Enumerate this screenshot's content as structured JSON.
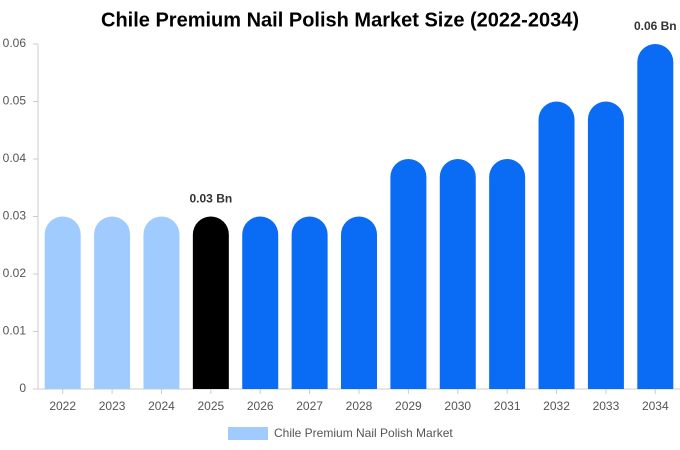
{
  "chart_data": {
    "type": "bar",
    "title": "Chile Premium Nail Polish Market Size (2022-2034)",
    "categories": [
      "2022",
      "2023",
      "2024",
      "2025",
      "2026",
      "2027",
      "2028",
      "2029",
      "2030",
      "2031",
      "2032",
      "2033",
      "2034"
    ],
    "series": [
      {
        "name": "Chile Premium Nail Polish Market",
        "color": "#a0cbff",
        "colors": [
          "#a0cbff",
          "#a0cbff",
          "#a0cbff",
          "#000000",
          "#0a6cf5",
          "#0a6cf5",
          "#0a6cf5",
          "#0a6cf5",
          "#0a6cf5",
          "#0a6cf5",
          "#0a6cf5",
          "#0a6cf5",
          "#0a6cf5"
        ],
        "values": [
          0.03,
          0.03,
          0.03,
          0.03,
          0.03,
          0.03,
          0.03,
          0.04,
          0.04,
          0.04,
          0.05,
          0.05,
          0.06
        ],
        "value_labels": [
          null,
          null,
          null,
          "0.03 Bn",
          null,
          null,
          null,
          null,
          null,
          null,
          null,
          null,
          "0.06 Bn"
        ]
      }
    ],
    "ylim": [
      0,
      0.06
    ],
    "yticks": [
      0,
      0.01,
      0.02,
      0.03,
      0.04,
      0.05,
      0.06
    ]
  }
}
